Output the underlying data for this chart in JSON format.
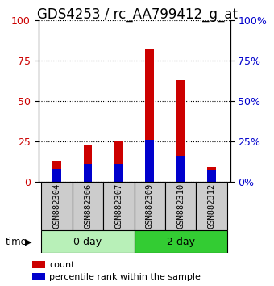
{
  "title": "GDS4253 / rc_AA799412_g_at",
  "samples": [
    "GSM882304",
    "GSM882306",
    "GSM882307",
    "GSM882309",
    "GSM882310",
    "GSM882312"
  ],
  "count_values": [
    13,
    23,
    25,
    82,
    63,
    9
  ],
  "percentile_values": [
    8,
    11,
    11,
    26,
    16,
    7
  ],
  "groups": [
    {
      "label": "0 day",
      "samples": [
        0,
        1,
        2
      ],
      "color": "#b8f0b8"
    },
    {
      "label": "2 day",
      "samples": [
        3,
        4,
        5
      ],
      "color": "#33cc33"
    }
  ],
  "count_color": "#cc0000",
  "percentile_color": "#0000cc",
  "ylim": [
    0,
    100
  ],
  "yticks": [
    0,
    25,
    50,
    75,
    100
  ],
  "grid_color": "black",
  "bg_color": "#cccccc",
  "legend_count_label": "count",
  "legend_percentile_label": "percentile rank within the sample",
  "time_label": "time",
  "title_fontsize": 12,
  "tick_fontsize": 9,
  "bar_width": 0.28
}
